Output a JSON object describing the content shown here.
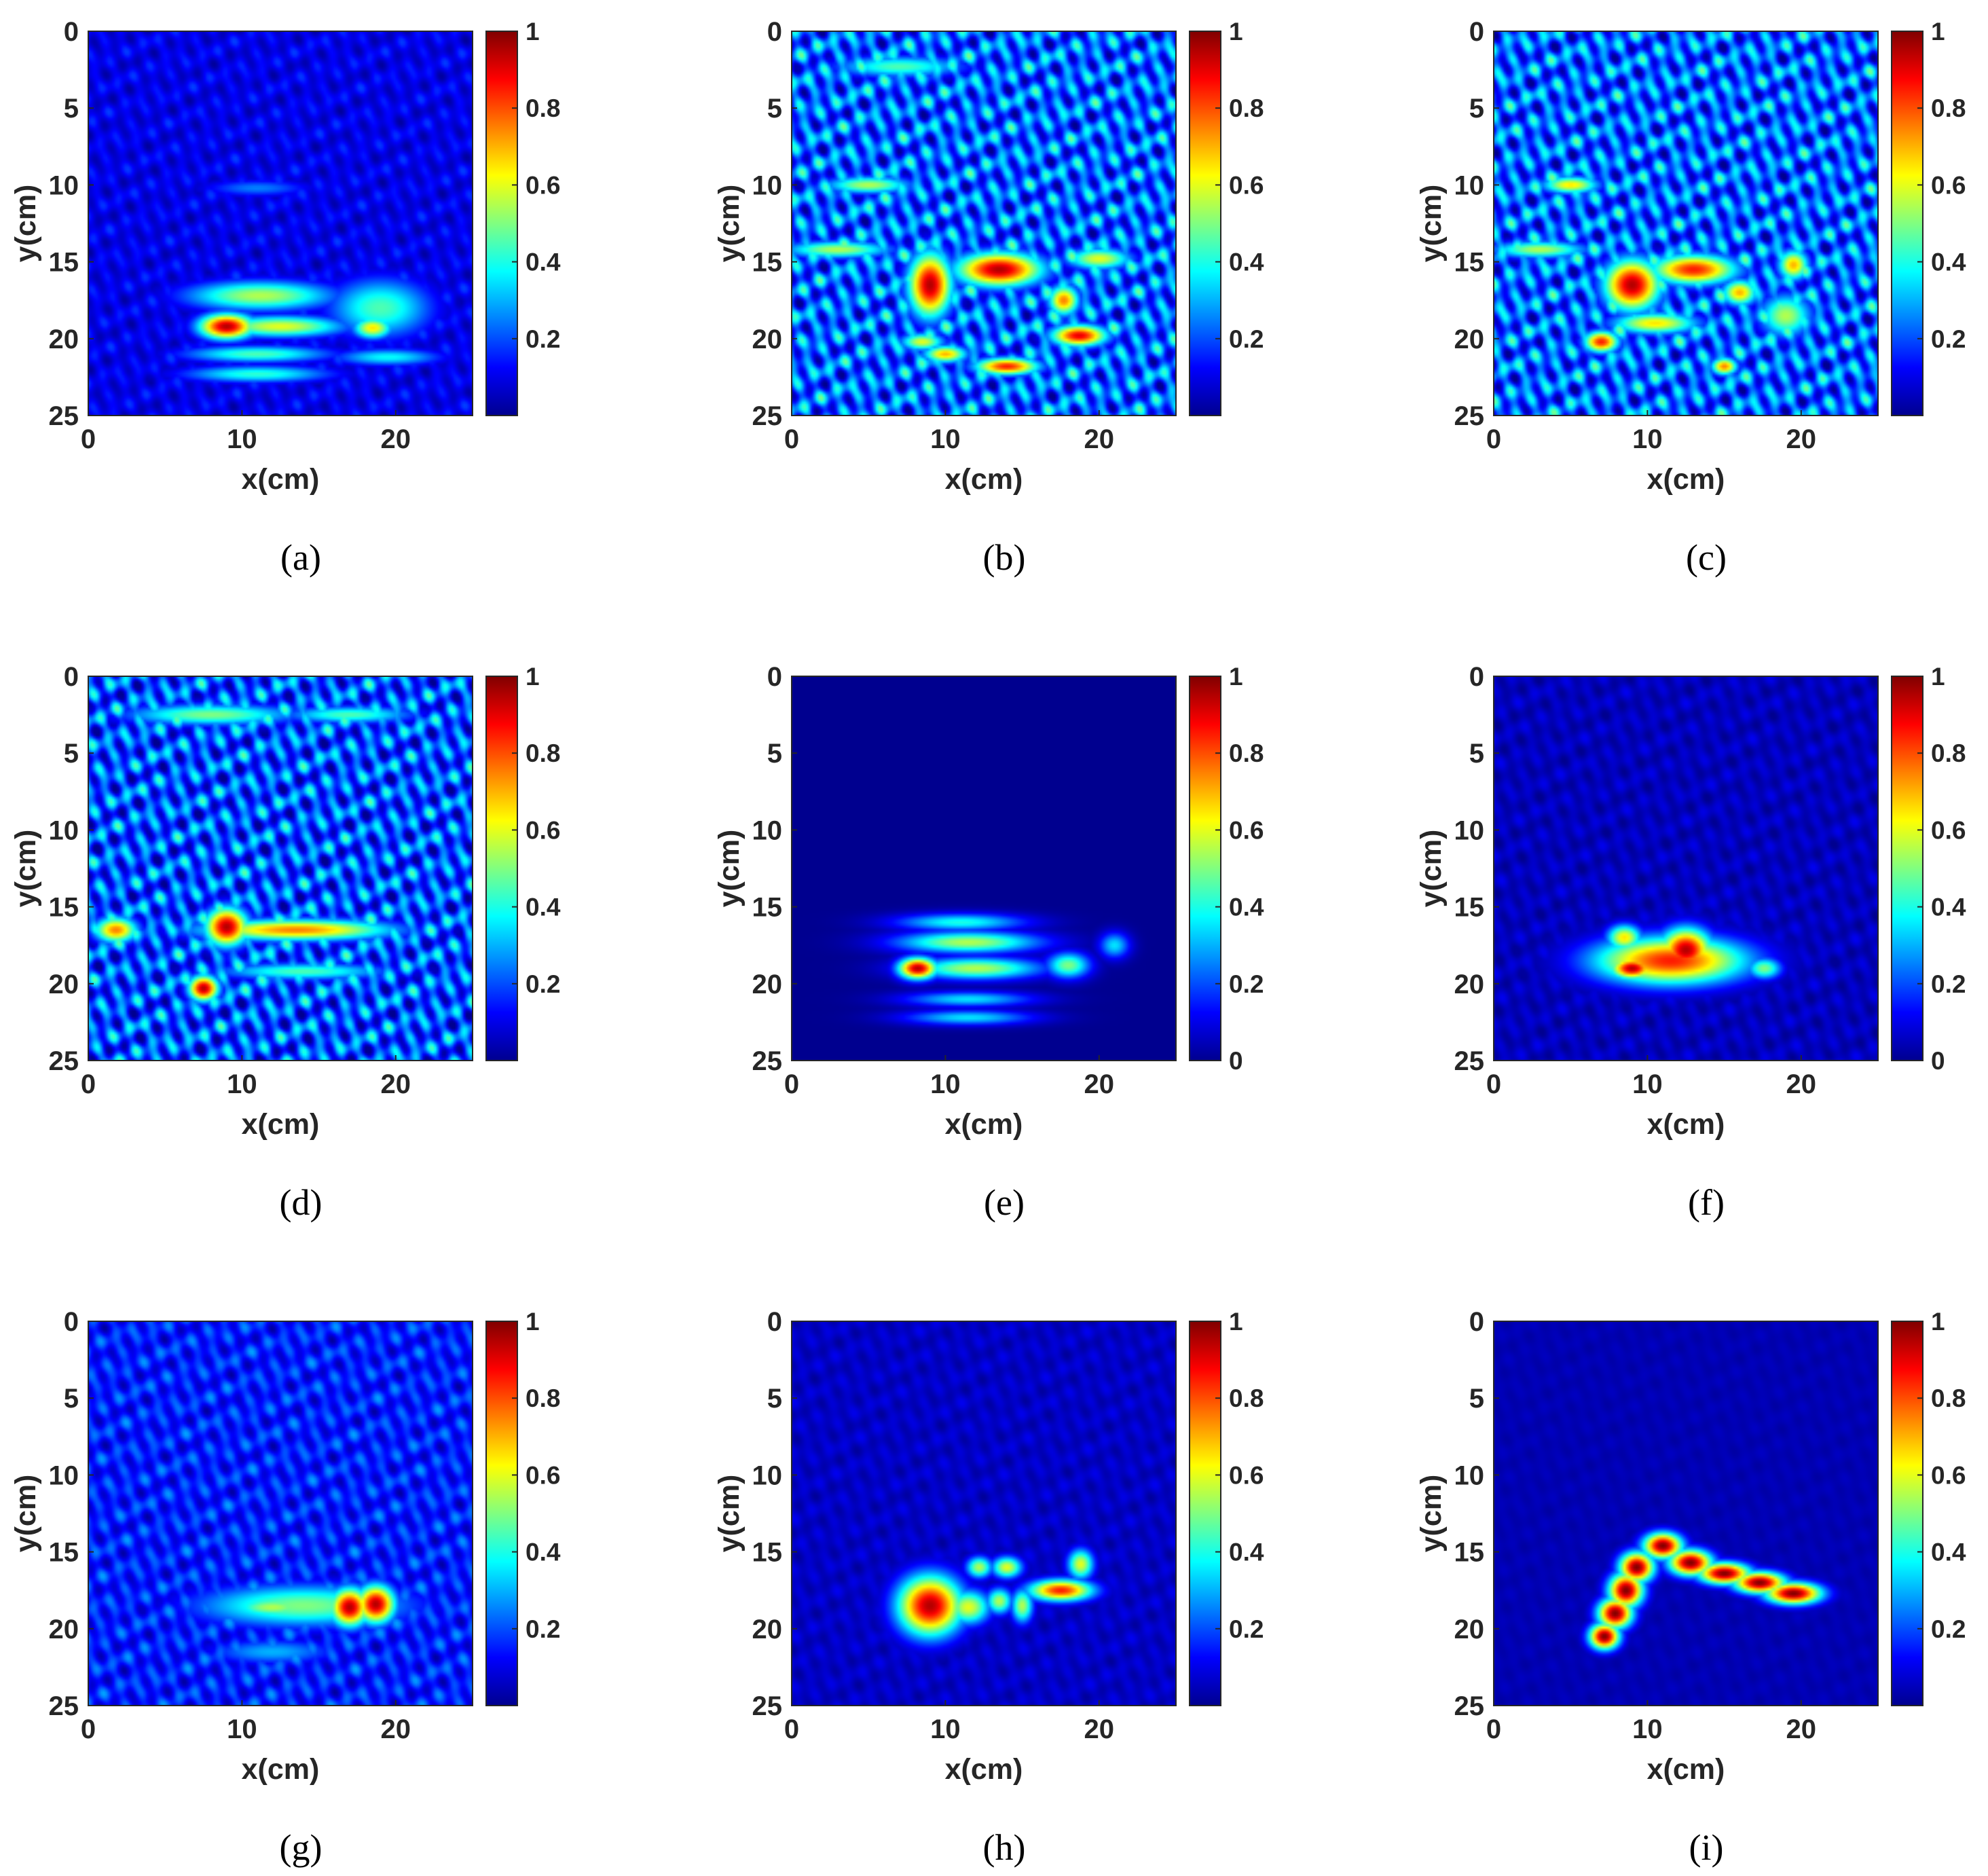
{
  "figure": {
    "colormap": "jet",
    "colormap_stops": [
      "#00008f",
      "#0000ff",
      "#0080ff",
      "#00ffff",
      "#80ff80",
      "#ffff00",
      "#ff8000",
      "#ff0000",
      "#800000"
    ]
  },
  "chart_data": [
    {
      "type": "heatmap",
      "caption": "(a)",
      "xlabel": "x(cm)",
      "ylabel": "y(cm)",
      "xlim": [
        0,
        25
      ],
      "ylim": [
        0,
        25
      ],
      "y_direction": "reversed",
      "x_ticks": [
        "0",
        "10",
        "20"
      ],
      "y_ticks": [
        "0",
        "5",
        "10",
        "15",
        "20",
        "25"
      ],
      "colorbar": {
        "range": [
          0,
          1
        ],
        "ticks": [
          "0.2",
          "0.4",
          "0.6",
          "0.8",
          "1"
        ]
      },
      "background_level": 0.1,
      "noise_level": 0.09,
      "hotspots": [
        {
          "x": 11.2,
          "y": 17.2,
          "rx": 3.5,
          "ry": 0.7,
          "value": 0.55
        },
        {
          "x": 9.0,
          "y": 19.2,
          "rx": 1.3,
          "ry": 0.6,
          "value": 0.95
        },
        {
          "x": 12.5,
          "y": 19.2,
          "rx": 3.0,
          "ry": 0.5,
          "value": 0.6
        },
        {
          "x": 11.0,
          "y": 21.0,
          "rx": 3.5,
          "ry": 0.4,
          "value": 0.45
        },
        {
          "x": 11.0,
          "y": 22.3,
          "rx": 3.5,
          "ry": 0.4,
          "value": 0.42
        },
        {
          "x": 19.0,
          "y": 18.0,
          "rx": 2.4,
          "ry": 1.4,
          "value": 0.45
        },
        {
          "x": 18.5,
          "y": 19.3,
          "rx": 0.9,
          "ry": 0.5,
          "value": 0.65
        },
        {
          "x": 19.5,
          "y": 21.2,
          "rx": 2.5,
          "ry": 0.4,
          "value": 0.38
        },
        {
          "x": 11.0,
          "y": 10.2,
          "rx": 2.5,
          "ry": 0.4,
          "value": 0.25
        }
      ]
    },
    {
      "type": "heatmap",
      "caption": "(b)",
      "xlabel": "x(cm)",
      "ylabel": "y(cm)",
      "xlim": [
        0,
        25
      ],
      "ylim": [
        0,
        25
      ],
      "y_direction": "reversed",
      "x_ticks": [
        "0",
        "10",
        "20"
      ],
      "y_ticks": [
        "0",
        "5",
        "10",
        "15",
        "20",
        "25"
      ],
      "colorbar": {
        "range": [
          0,
          1
        ],
        "ticks": [
          "0.2",
          "0.4",
          "0.6",
          "0.8",
          "1"
        ]
      },
      "background_level": 0.22,
      "noise_level": 0.28,
      "hotspots": [
        {
          "x": 9.0,
          "y": 16.5,
          "rx": 1.0,
          "ry": 1.5,
          "value": 0.95
        },
        {
          "x": 13.5,
          "y": 15.5,
          "rx": 2.0,
          "ry": 0.8,
          "value": 0.95
        },
        {
          "x": 18.7,
          "y": 19.8,
          "rx": 1.3,
          "ry": 0.5,
          "value": 0.9
        },
        {
          "x": 14.0,
          "y": 21.8,
          "rx": 1.5,
          "ry": 0.4,
          "value": 0.85
        },
        {
          "x": 17.7,
          "y": 17.5,
          "rx": 0.7,
          "ry": 0.7,
          "value": 0.75
        },
        {
          "x": 8.5,
          "y": 20.2,
          "rx": 1.0,
          "ry": 0.4,
          "value": 0.6
        },
        {
          "x": 10.0,
          "y": 21.0,
          "rx": 1.0,
          "ry": 0.4,
          "value": 0.7
        },
        {
          "x": 3.0,
          "y": 14.2,
          "rx": 2.5,
          "ry": 0.4,
          "value": 0.55
        },
        {
          "x": 5.0,
          "y": 10.0,
          "rx": 2.0,
          "ry": 0.4,
          "value": 0.55
        },
        {
          "x": 7.0,
          "y": 2.3,
          "rx": 3.0,
          "ry": 0.5,
          "value": 0.45
        },
        {
          "x": 20.0,
          "y": 14.8,
          "rx": 1.5,
          "ry": 0.5,
          "value": 0.6
        }
      ]
    },
    {
      "type": "heatmap",
      "caption": "(c)",
      "xlabel": "x(cm)",
      "ylabel": "y(cm)",
      "xlim": [
        0,
        25
      ],
      "ylim": [
        0,
        25
      ],
      "y_direction": "reversed",
      "x_ticks": [
        "0",
        "10",
        "20"
      ],
      "y_ticks": [
        "0",
        "5",
        "10",
        "15",
        "20",
        "25"
      ],
      "colorbar": {
        "range": [
          0,
          1
        ],
        "ticks": [
          "0.2",
          "0.4",
          "0.6",
          "0.8",
          "1"
        ]
      },
      "background_level": 0.22,
      "noise_level": 0.28,
      "hotspots": [
        {
          "x": 9.0,
          "y": 16.5,
          "rx": 1.3,
          "ry": 1.2,
          "value": 0.95
        },
        {
          "x": 13.0,
          "y": 15.5,
          "rx": 2.0,
          "ry": 0.7,
          "value": 0.85
        },
        {
          "x": 7.0,
          "y": 20.2,
          "rx": 0.8,
          "ry": 0.5,
          "value": 0.85
        },
        {
          "x": 10.5,
          "y": 19.0,
          "rx": 2.0,
          "ry": 0.5,
          "value": 0.65
        },
        {
          "x": 16.0,
          "y": 17.0,
          "rx": 0.8,
          "ry": 0.6,
          "value": 0.7
        },
        {
          "x": 15.0,
          "y": 21.8,
          "rx": 0.6,
          "ry": 0.4,
          "value": 0.75
        },
        {
          "x": 19.5,
          "y": 15.2,
          "rx": 0.7,
          "ry": 0.7,
          "value": 0.7
        },
        {
          "x": 5.0,
          "y": 10.0,
          "rx": 1.3,
          "ry": 0.4,
          "value": 0.65
        },
        {
          "x": 3.0,
          "y": 14.2,
          "rx": 2.2,
          "ry": 0.4,
          "value": 0.55
        },
        {
          "x": 19.0,
          "y": 18.5,
          "rx": 1.2,
          "ry": 1.0,
          "value": 0.55
        }
      ]
    },
    {
      "type": "heatmap",
      "caption": "(d)",
      "xlabel": "x(cm)",
      "ylabel": "y(cm)",
      "xlim": [
        0,
        25
      ],
      "ylim": [
        0,
        25
      ],
      "y_direction": "reversed",
      "x_ticks": [
        "0",
        "10",
        "20"
      ],
      "y_ticks": [
        "0",
        "5",
        "10",
        "15",
        "20",
        "25"
      ],
      "colorbar": {
        "range": [
          0,
          1
        ],
        "ticks": [
          "0.2",
          "0.4",
          "0.6",
          "0.8",
          "1"
        ]
      },
      "background_level": 0.2,
      "noise_level": 0.28,
      "hotspots": [
        {
          "x": 9.0,
          "y": 16.3,
          "rx": 1.0,
          "ry": 0.9,
          "value": 0.95
        },
        {
          "x": 13.5,
          "y": 16.5,
          "rx": 4.5,
          "ry": 0.5,
          "value": 0.75
        },
        {
          "x": 7.5,
          "y": 20.3,
          "rx": 0.7,
          "ry": 0.6,
          "value": 0.95
        },
        {
          "x": 1.8,
          "y": 16.5,
          "rx": 1.0,
          "ry": 0.6,
          "value": 0.75
        },
        {
          "x": 14.0,
          "y": 19.2,
          "rx": 4.0,
          "ry": 0.4,
          "value": 0.45
        },
        {
          "x": 8.0,
          "y": 2.5,
          "rx": 4.0,
          "ry": 0.5,
          "value": 0.5
        },
        {
          "x": 17.0,
          "y": 2.5,
          "rx": 3.0,
          "ry": 0.4,
          "value": 0.45
        }
      ]
    },
    {
      "type": "heatmap",
      "caption": "(e)",
      "xlabel": "x(cm)",
      "ylabel": "y(cm)",
      "xlim": [
        0,
        25
      ],
      "ylim": [
        0,
        25
      ],
      "y_direction": "reversed",
      "x_ticks": [
        "0",
        "10",
        "20"
      ],
      "y_ticks": [
        "0",
        "5",
        "10",
        "15",
        "20",
        "25"
      ],
      "colorbar": {
        "range": [
          0,
          1
        ],
        "ticks": [
          "0",
          "0.2",
          "0.4",
          "0.6",
          "0.8",
          "1"
        ]
      },
      "background_level": 0.0,
      "noise_level": 0.0,
      "hotspots": [
        {
          "x": 11.0,
          "y": 16.0,
          "rx": 3.0,
          "ry": 0.4,
          "value": 0.4
        },
        {
          "x": 11.5,
          "y": 17.3,
          "rx": 3.3,
          "ry": 0.5,
          "value": 0.55
        },
        {
          "x": 8.2,
          "y": 19.0,
          "rx": 0.9,
          "ry": 0.5,
          "value": 0.95
        },
        {
          "x": 12.0,
          "y": 19.0,
          "rx": 3.0,
          "ry": 0.5,
          "value": 0.55
        },
        {
          "x": 11.5,
          "y": 21.0,
          "rx": 3.0,
          "ry": 0.35,
          "value": 0.35
        },
        {
          "x": 11.5,
          "y": 22.2,
          "rx": 3.0,
          "ry": 0.35,
          "value": 0.35
        },
        {
          "x": 18.0,
          "y": 18.8,
          "rx": 1.0,
          "ry": 0.6,
          "value": 0.5
        },
        {
          "x": 21.0,
          "y": 17.5,
          "rx": 0.7,
          "ry": 0.6,
          "value": 0.35
        }
      ]
    },
    {
      "type": "heatmap",
      "caption": "(f)",
      "xlabel": "x(cm)",
      "ylabel": "y(cm)",
      "xlim": [
        0,
        25
      ],
      "ylim": [
        0,
        25
      ],
      "y_direction": "reversed",
      "x_ticks": [
        "0",
        "10",
        "20"
      ],
      "y_ticks": [
        "0",
        "5",
        "10",
        "15",
        "20",
        "25"
      ],
      "colorbar": {
        "range": [
          0,
          1
        ],
        "ticks": [
          "0",
          "0.2",
          "0.4",
          "0.6",
          "0.8",
          "1"
        ]
      },
      "background_level": 0.05,
      "noise_level": 0.06,
      "hotspots": [
        {
          "x": 11.5,
          "y": 18.5,
          "rx": 3.5,
          "ry": 1.1,
          "value": 0.85
        },
        {
          "x": 12.5,
          "y": 17.8,
          "rx": 1.2,
          "ry": 1.0,
          "value": 0.95
        },
        {
          "x": 9.0,
          "y": 19.0,
          "rx": 1.0,
          "ry": 0.5,
          "value": 0.95
        },
        {
          "x": 8.5,
          "y": 17.0,
          "rx": 0.8,
          "ry": 0.6,
          "value": 0.65
        },
        {
          "x": 17.6,
          "y": 19.0,
          "rx": 0.8,
          "ry": 0.5,
          "value": 0.5
        }
      ]
    },
    {
      "type": "heatmap",
      "caption": "(g)",
      "xlabel": "x(cm)",
      "ylabel": "y(cm)",
      "xlim": [
        0,
        25
      ],
      "ylim": [
        0,
        25
      ],
      "y_direction": "reversed",
      "x_ticks": [
        "0",
        "10",
        "20"
      ],
      "y_ticks": [
        "0",
        "5",
        "10",
        "15",
        "20",
        "25"
      ],
      "colorbar": {
        "range": [
          0,
          1
        ],
        "ticks": [
          "0.2",
          "0.4",
          "0.6",
          "0.8",
          "1"
        ]
      },
      "background_level": 0.15,
      "noise_level": 0.14,
      "hotspots": [
        {
          "x": 14.0,
          "y": 18.5,
          "rx": 5.0,
          "ry": 1.0,
          "value": 0.5
        },
        {
          "x": 17.0,
          "y": 18.6,
          "rx": 0.9,
          "ry": 0.9,
          "value": 0.95
        },
        {
          "x": 18.7,
          "y": 18.4,
          "rx": 0.9,
          "ry": 0.9,
          "value": 0.95
        },
        {
          "x": 12.0,
          "y": 18.6,
          "rx": 2.0,
          "ry": 0.5,
          "value": 0.55
        },
        {
          "x": 12.0,
          "y": 21.5,
          "rx": 3.0,
          "ry": 0.6,
          "value": 0.3
        }
      ]
    },
    {
      "type": "heatmap",
      "caption": "(h)",
      "xlabel": "x(cm)",
      "ylabel": "y(cm)",
      "xlim": [
        0,
        25
      ],
      "ylim": [
        0,
        25
      ],
      "y_direction": "reversed",
      "x_ticks": [
        "0",
        "10",
        "20"
      ],
      "y_ticks": [
        "0",
        "5",
        "10",
        "15",
        "20",
        "25"
      ],
      "colorbar": {
        "range": [
          0,
          1
        ],
        "ticks": [
          "0.2",
          "0.4",
          "0.6",
          "0.8",
          "1"
        ]
      },
      "background_level": 0.06,
      "noise_level": 0.05,
      "hotspots": [
        {
          "x": 9.0,
          "y": 18.5,
          "rx": 1.5,
          "ry": 1.4,
          "value": 0.95
        },
        {
          "x": 11.5,
          "y": 18.6,
          "rx": 1.0,
          "ry": 0.8,
          "value": 0.6
        },
        {
          "x": 12.2,
          "y": 16.0,
          "rx": 0.6,
          "ry": 0.5,
          "value": 0.55
        },
        {
          "x": 14.0,
          "y": 16.0,
          "rx": 0.7,
          "ry": 0.5,
          "value": 0.6
        },
        {
          "x": 13.5,
          "y": 18.2,
          "rx": 0.6,
          "ry": 0.6,
          "value": 0.55
        },
        {
          "x": 15.0,
          "y": 18.5,
          "rx": 0.5,
          "ry": 0.8,
          "value": 0.55
        },
        {
          "x": 17.5,
          "y": 17.5,
          "rx": 1.5,
          "ry": 0.5,
          "value": 0.85
        },
        {
          "x": 18.8,
          "y": 15.8,
          "rx": 0.6,
          "ry": 0.7,
          "value": 0.6
        }
      ]
    },
    {
      "type": "heatmap",
      "caption": "(i)",
      "xlabel": "x(cm)",
      "ylabel": "y(cm)",
      "xlim": [
        0,
        25
      ],
      "ylim": [
        0,
        25
      ],
      "y_direction": "reversed",
      "x_ticks": [
        "0",
        "10",
        "20"
      ],
      "y_ticks": [
        "0",
        "5",
        "10",
        "15",
        "20",
        "25"
      ],
      "colorbar": {
        "range": [
          0,
          1
        ],
        "ticks": [
          "0.2",
          "0.4",
          "0.6",
          "0.8",
          "1"
        ]
      },
      "background_level": 0.04,
      "noise_level": 0.02,
      "hotspots": [
        {
          "x": 7.2,
          "y": 20.5,
          "rx": 0.7,
          "ry": 0.6,
          "value": 1.0
        },
        {
          "x": 7.9,
          "y": 19.0,
          "rx": 0.8,
          "ry": 0.7,
          "value": 1.0
        },
        {
          "x": 8.6,
          "y": 17.5,
          "rx": 0.8,
          "ry": 0.8,
          "value": 1.0
        },
        {
          "x": 9.3,
          "y": 16.0,
          "rx": 0.8,
          "ry": 0.7,
          "value": 1.0
        },
        {
          "x": 11.0,
          "y": 14.6,
          "rx": 0.9,
          "ry": 0.6,
          "value": 1.0
        },
        {
          "x": 12.8,
          "y": 15.7,
          "rx": 1.0,
          "ry": 0.6,
          "value": 1.0
        },
        {
          "x": 15.0,
          "y": 16.4,
          "rx": 1.2,
          "ry": 0.5,
          "value": 1.0
        },
        {
          "x": 17.3,
          "y": 17.0,
          "rx": 1.2,
          "ry": 0.5,
          "value": 1.0
        },
        {
          "x": 19.5,
          "y": 17.7,
          "rx": 1.3,
          "ry": 0.5,
          "value": 1.0
        }
      ]
    }
  ]
}
